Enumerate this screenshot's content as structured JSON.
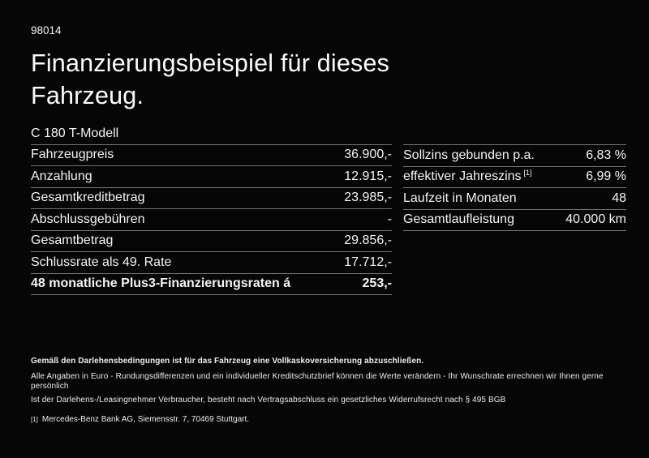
{
  "page": {
    "ref_number": "98014",
    "title_line1": "Finanzierungsbeispiel für dieses",
    "title_line2": "Fahrzeug.",
    "model": "C 180 T-Modell"
  },
  "left_table": {
    "rows": [
      {
        "label": "Fahrzeugpreis",
        "value": "36.900,-"
      },
      {
        "label": "Anzahlung",
        "value": "12.915,-"
      },
      {
        "label": "Gesamtkreditbetrag",
        "value": "23.985,-"
      },
      {
        "label": "Abschlussgebühren",
        "value": "-"
      },
      {
        "label": "Gesamtbetrag",
        "value": "29.856,-"
      },
      {
        "label": "Schlussrate als 49. Rate",
        "value": "17.712,-"
      },
      {
        "label": "48 monatliche Plus3-Finanzierungsraten á",
        "value": "253,-"
      }
    ]
  },
  "right_table": {
    "rows": [
      {
        "label": "Sollzins gebunden p.a.",
        "value": "6,83 %"
      },
      {
        "label": "effektiver Jahreszins",
        "sup": "[1]",
        "value": "6,99 %"
      },
      {
        "label": "Laufzeit in Monaten",
        "value": "48"
      },
      {
        "label": "Gesamtlaufleistung",
        "value": "40.000 km"
      }
    ]
  },
  "footer": {
    "bold_note": "Gemäß den Darlehensbedingungen ist für das Fahrzeug eine Vollkaskoversicherung abzuschließen.",
    "note1": "Alle Angaben in Euro - Rundungsdifferenzen und ein individueller Kreditschutzbrief können die Werte verändern - Ihr Wunschrate errechnen wir Ihnen gerne persönlich",
    "note2": "Ist der Darlehens-/Leasingnehmer Verbraucher, besteht nach Vertragsabschluss ein gesetzliches Widerrufsrecht nach § 495 BGB",
    "footnote_marker": "[1]",
    "footnote": "Mercedes-Benz Bank AG, Siemensstr. 7, 70469 Stuttgart."
  },
  "colors": {
    "background": "#060606",
    "text": "#f4f4f4",
    "separator": "#737373"
  }
}
